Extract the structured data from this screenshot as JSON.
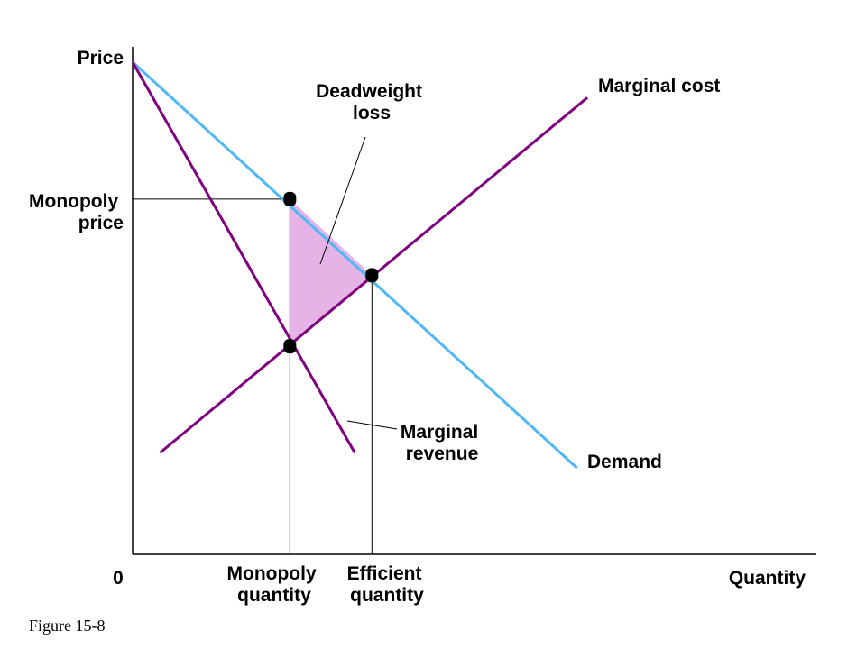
{
  "chart_data": {
    "type": "line",
    "title": "",
    "xlabel": "Quantity",
    "ylabel": "Price",
    "origin_label": "0",
    "xlim": [
      0,
      100
    ],
    "ylim": [
      0,
      100
    ],
    "grid": false,
    "series": [
      {
        "name": "Demand",
        "color": "#4db8f5",
        "x": [
          0,
          65
        ],
        "y": [
          97,
          17
        ]
      },
      {
        "name": "Marginal revenue",
        "color": "#800080",
        "x": [
          0,
          32.5
        ],
        "y": [
          97,
          20
        ]
      },
      {
        "name": "Marginal cost",
        "color": "#800080",
        "x": [
          4,
          66.5
        ],
        "y": [
          20,
          90
        ]
      }
    ],
    "annotations": {
      "deadweight_loss": {
        "label_lines": [
          "Deadweight",
          "loss"
        ],
        "color": "#e6b3e6",
        "vertices": [
          [
            23,
            70
          ],
          [
            23,
            41
          ],
          [
            35,
            55
          ]
        ]
      },
      "monopoly_price": {
        "label_lines": [
          "Monopoly",
          "price"
        ],
        "y": 70
      },
      "monopoly_quantity": {
        "label_lines": [
          "Monopoly",
          "quantity"
        ],
        "x": 23
      },
      "efficient_quantity": {
        "label_lines": [
          "Efficient",
          "quantity"
        ],
        "x": 35
      },
      "points": [
        {
          "x": 23,
          "y": 70
        },
        {
          "x": 35,
          "y": 55
        },
        {
          "x": 23,
          "y": 41
        }
      ]
    },
    "curve_labels": {
      "demand": "Demand",
      "marginal_cost": "Marginal cost",
      "marginal_revenue_lines": [
        "Marginal",
        "revenue"
      ]
    }
  },
  "figure_caption": "Figure 15-8"
}
